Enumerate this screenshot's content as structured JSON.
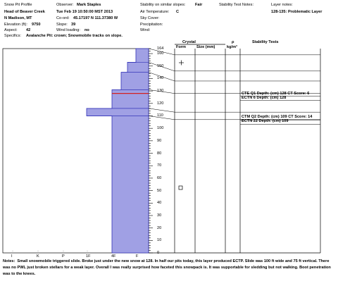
{
  "header": {
    "title": "Snow Pit Profile",
    "location": "Head of Beaver Creek",
    "region": "N Madison, MT",
    "elevation_label": "Elevation (ft):",
    "elevation": "9750",
    "aspect_label": "Aspect:",
    "aspect": "42",
    "specifics_label": "Specifics:",
    "specifics": "Avalanche Pit: crown; Snowmobile tracks on slope.",
    "observer_label": "Observer:",
    "observer": "Mark Staples",
    "datetime": "Tue Feb 19 10:50:00 MST 2013",
    "coord_label": "Co-ord:",
    "coord": "45.17197 N 111.37380 W",
    "slope_label": "Slope:",
    "slope": "39",
    "wind_label": "Wind loading:",
    "wind_value": "no",
    "stability_similar_label": "Stability on similar slopes:",
    "stability_similar": "Fair",
    "air_temp_label": "Air Temperature:",
    "air_temp": "C",
    "sky_label": "Sky Cover:",
    "precip_label": "Precipitation:",
    "wind2_label": "Wind:",
    "stability_notes_label": "Stability Test Notes:",
    "layer_notes_label": "Layer notes:",
    "layer_notes": "128-135: Problematic Layer"
  },
  "columns": {
    "crystal": "Crystal",
    "form": "Form",
    "size": "Size (mm)",
    "rho": "ρ",
    "rho_unit": "kg/m³",
    "stability_tests": "Stability Tests"
  },
  "axis": {
    "ticks": [
      "164",
      "160",
      "150",
      "140",
      "130",
      "120",
      "110",
      "100",
      "90",
      "80",
      "70",
      "60",
      "50",
      "40",
      "30",
      "20",
      "10",
      "0"
    ],
    "hardness_labels": [
      "I",
      "K",
      "P",
      "1F",
      "4F",
      "F"
    ]
  },
  "stability_tests": [
    {
      "text": "CTE Q1 Depth: (cm) 128 CT Score: 6"
    },
    {
      "text": "ECTN 6   Depth: (cm) 128"
    },
    {
      "text": "CTM Q2 Depth: (cm) 109 CT Score: 14"
    },
    {
      "text": "ECTN 22   Depth: (cm) 109"
    }
  ],
  "colors": {
    "profile_fill": "#a0a0e4",
    "profile_stroke": "#3434b8",
    "problem_line": "#d42020"
  },
  "notes_label": "Notes:",
  "notes": "Small snowmobile triggered slide. Broke just under the new snow at 128. In half our pits today, this layer produced ECTP. Slide was 100 ft wide and 75 ft vertical. There was no PWL just broken stellars for a weak layer. Overall I was really surprised how faceted this snowpack is. It was supportable for sledding but not walking. Boot penetration was to the knees."
}
